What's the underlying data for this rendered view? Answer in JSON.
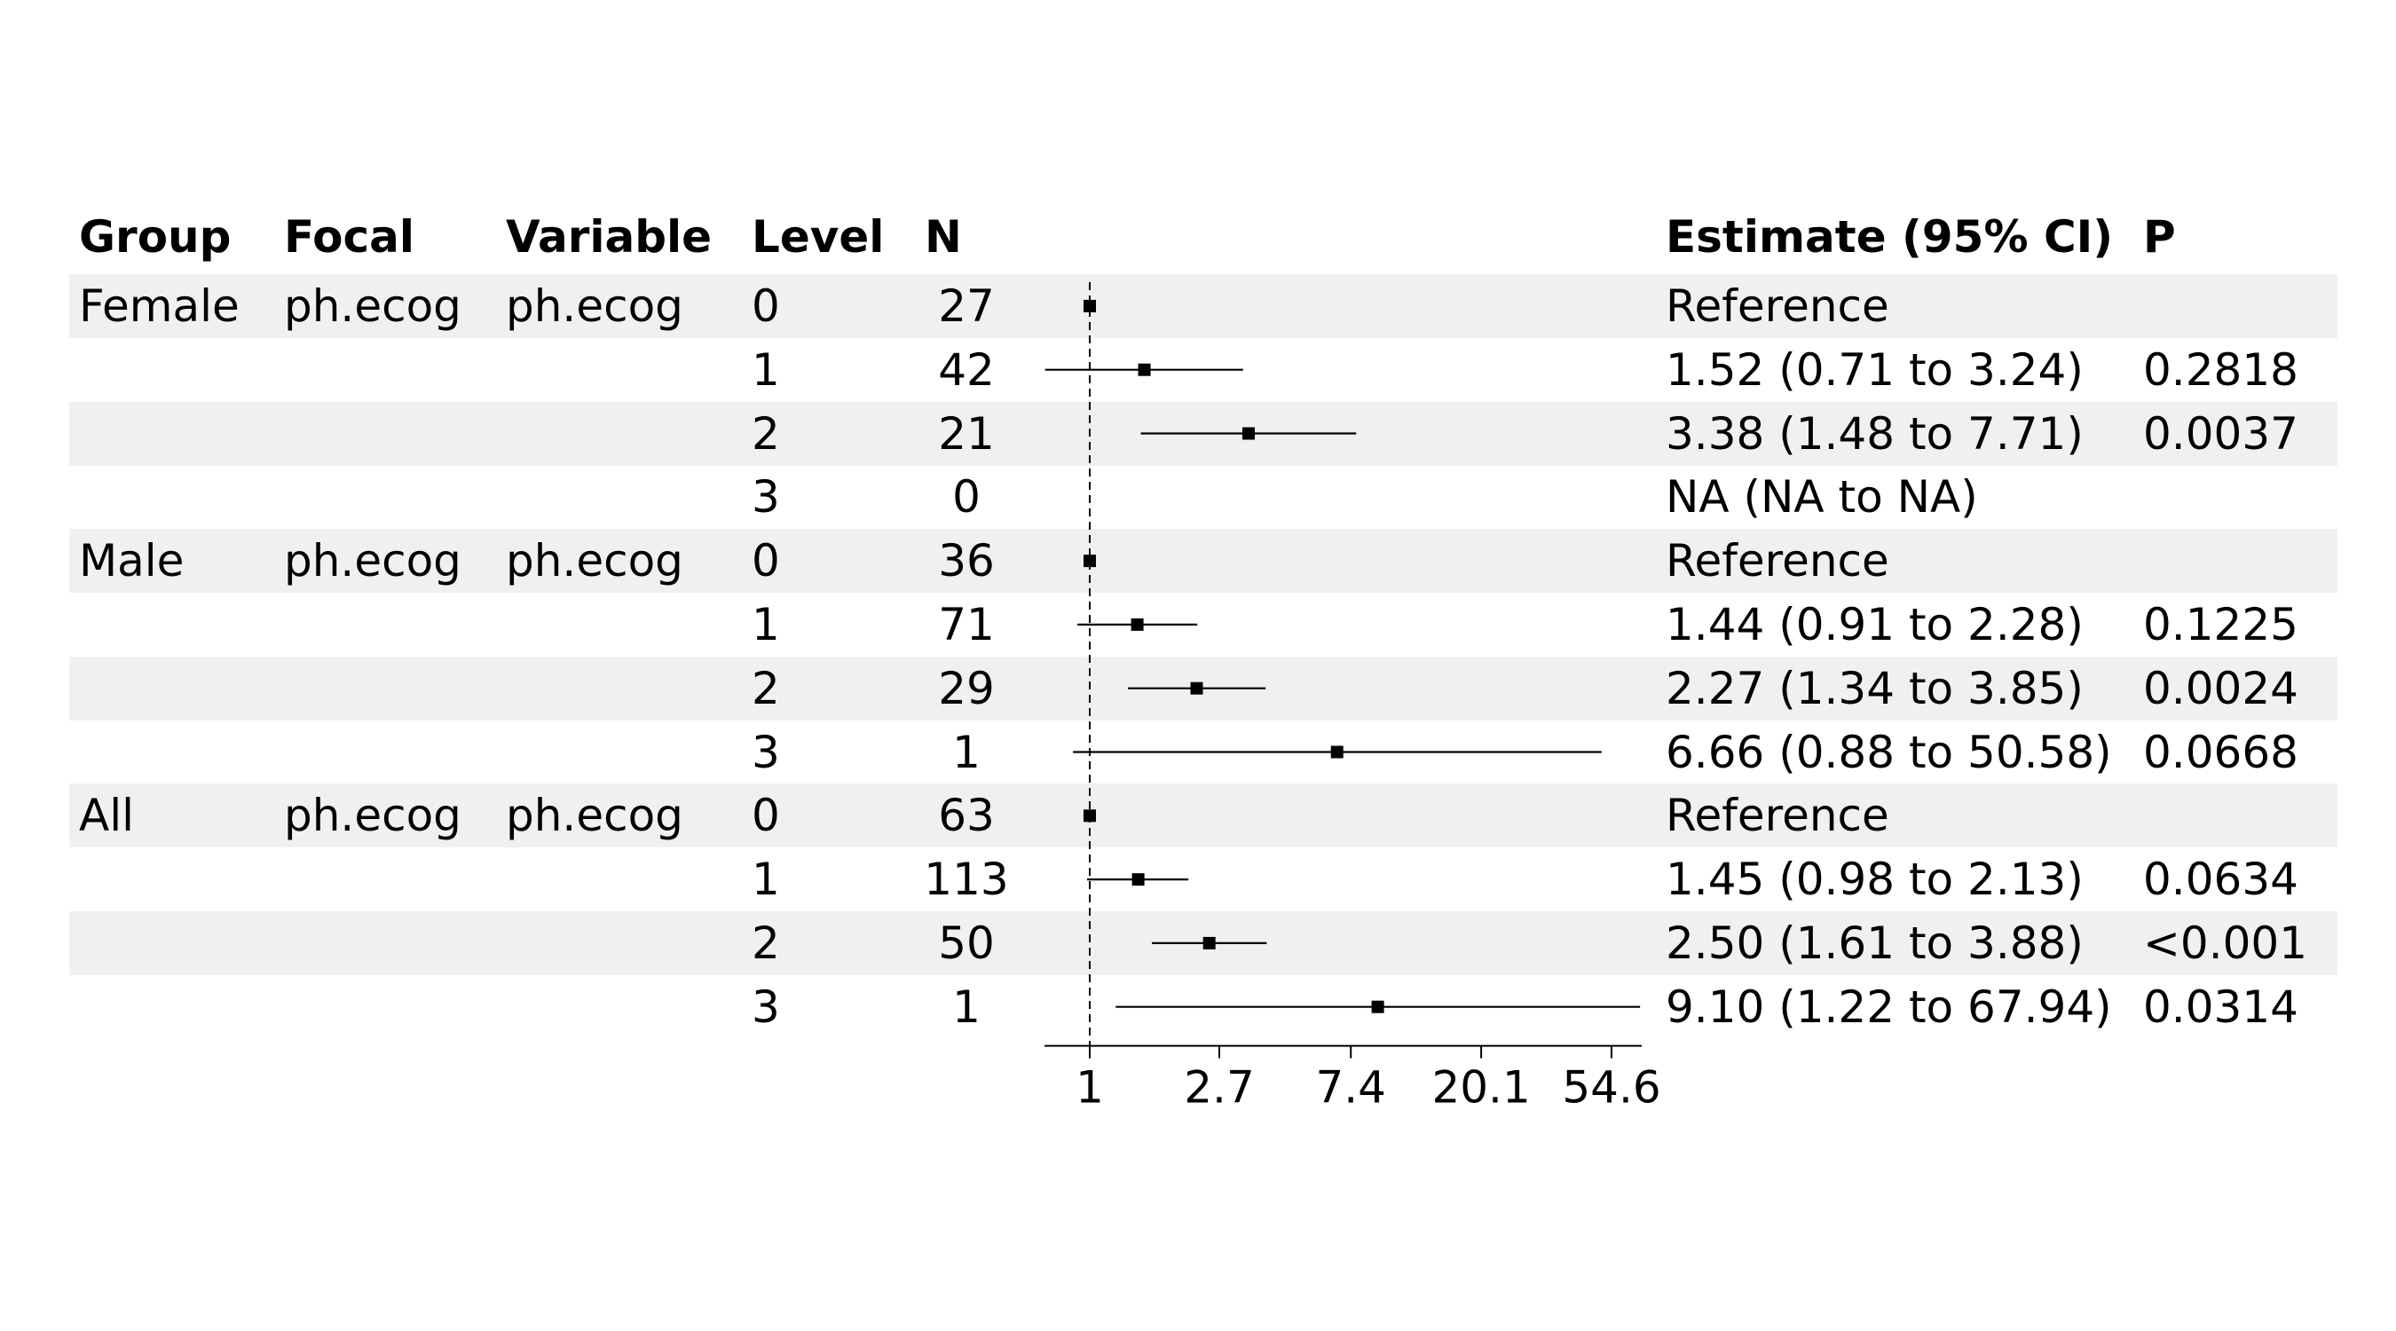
{
  "chart_data": {
    "type": "table",
    "columns": [
      "Group",
      "Focal",
      "Variable",
      "Level",
      "N",
      "Estimate (95% CI)",
      "P"
    ],
    "x_axis": {
      "scale": "log",
      "ticks": [
        1,
        2.7,
        7.4,
        20.1,
        54.6
      ],
      "tick_labels": [
        "1",
        "2.7",
        "7.4",
        "20.1",
        "54.6"
      ],
      "reference_line": 1
    },
    "rows": [
      {
        "group": "Female",
        "focal": "ph.ecog",
        "variable": "ph.ecog",
        "level": "0",
        "n": "27",
        "estimate_text": "Reference",
        "p": "",
        "est": 1,
        "lo": null,
        "hi": null,
        "reference": true,
        "shaded": true
      },
      {
        "group": "",
        "focal": "",
        "variable": "",
        "level": "1",
        "n": "42",
        "estimate_text": "1.52 (0.71 to 3.24)",
        "p": "0.2818",
        "est": 1.52,
        "lo": 0.71,
        "hi": 3.24,
        "reference": false,
        "shaded": false
      },
      {
        "group": "",
        "focal": "",
        "variable": "",
        "level": "2",
        "n": "21",
        "estimate_text": "3.38 (1.48 to 7.71)",
        "p": "0.0037",
        "est": 3.38,
        "lo": 1.48,
        "hi": 7.71,
        "reference": false,
        "shaded": true
      },
      {
        "group": "",
        "focal": "",
        "variable": "",
        "level": "3",
        "n": "0",
        "estimate_text": "NA (NA to NA)",
        "p": "",
        "est": null,
        "lo": null,
        "hi": null,
        "reference": false,
        "shaded": false
      },
      {
        "group": "Male",
        "focal": "ph.ecog",
        "variable": "ph.ecog",
        "level": "0",
        "n": "36",
        "estimate_text": "Reference",
        "p": "",
        "est": 1,
        "lo": null,
        "hi": null,
        "reference": true,
        "shaded": true
      },
      {
        "group": "",
        "focal": "",
        "variable": "",
        "level": "1",
        "n": "71",
        "estimate_text": "1.44 (0.91 to 2.28)",
        "p": "0.1225",
        "est": 1.44,
        "lo": 0.91,
        "hi": 2.28,
        "reference": false,
        "shaded": false
      },
      {
        "group": "",
        "focal": "",
        "variable": "",
        "level": "2",
        "n": "29",
        "estimate_text": "2.27 (1.34 to 3.85)",
        "p": "0.0024",
        "est": 2.27,
        "lo": 1.34,
        "hi": 3.85,
        "reference": false,
        "shaded": true
      },
      {
        "group": "",
        "focal": "",
        "variable": "",
        "level": "3",
        "n": "1",
        "estimate_text": "6.66 (0.88 to 50.58)",
        "p": "0.0668",
        "est": 6.66,
        "lo": 0.88,
        "hi": 50.58,
        "reference": false,
        "shaded": false
      },
      {
        "group": "All",
        "focal": "ph.ecog",
        "variable": "ph.ecog",
        "level": "0",
        "n": "63",
        "estimate_text": "Reference",
        "p": "",
        "est": 1,
        "lo": null,
        "hi": null,
        "reference": true,
        "shaded": true
      },
      {
        "group": "",
        "focal": "",
        "variable": "",
        "level": "1",
        "n": "113",
        "estimate_text": "1.45 (0.98 to 2.13)",
        "p": "0.0634",
        "est": 1.45,
        "lo": 0.98,
        "hi": 2.13,
        "reference": false,
        "shaded": false
      },
      {
        "group": "",
        "focal": "",
        "variable": "",
        "level": "2",
        "n": "50",
        "estimate_text": "2.50 (1.61 to 3.88)",
        "p": "<0.001",
        "est": 2.5,
        "lo": 1.61,
        "hi": 3.88,
        "reference": false,
        "shaded": true
      },
      {
        "group": "",
        "focal": "",
        "variable": "",
        "level": "3",
        "n": "1",
        "estimate_text": "9.10 (1.22 to 67.94)",
        "p": "0.0314",
        "est": 9.1,
        "lo": 1.22,
        "hi": 67.94,
        "reference": false,
        "shaded": false
      }
    ]
  }
}
